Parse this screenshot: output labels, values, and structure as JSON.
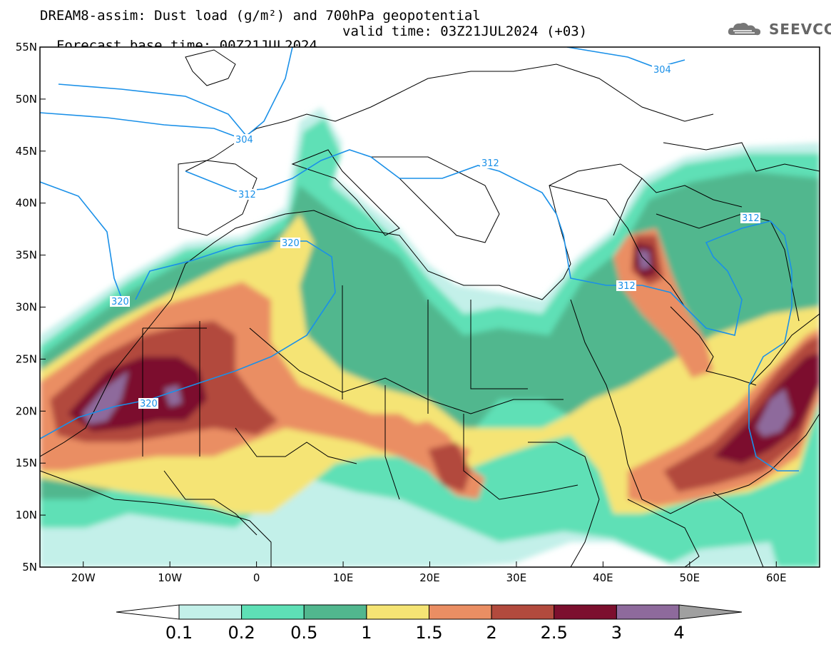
{
  "header": {
    "title_line1": "DREAM8-assim: Dust load (g/m²) and 700hPa geopotential",
    "base_time": "Forecast base time: 00Z21JUL2024",
    "valid_time": "valid time: 03Z21JUL2024 (+03)"
  },
  "logo": {
    "text": "SEEVCCC",
    "icon": "cloud-icon"
  },
  "map": {
    "lon_range": [
      -25,
      65
    ],
    "lat_range": [
      5,
      55
    ],
    "lat_ticks": [
      "55N",
      "50N",
      "45N",
      "40N",
      "35N",
      "30N",
      "25N",
      "20N",
      "15N",
      "10N",
      "5N"
    ],
    "lon_ticks": [
      "20W",
      "10W",
      "0",
      "10E",
      "20E",
      "30E",
      "40E",
      "50E",
      "60E"
    ],
    "contour_labels": [
      "304",
      "304",
      "312",
      "312",
      "312",
      "312",
      "320",
      "320",
      "320"
    ]
  },
  "colorbar": {
    "labels": [
      "0.1",
      "0.2",
      "0.5",
      "1",
      "1.5",
      "2",
      "2.5",
      "3",
      "4"
    ],
    "colors": [
      "#ffffff",
      "#c3f0e9",
      "#5ee0b6",
      "#51b78e",
      "#f5e474",
      "#ea8e63",
      "#b24a3d",
      "#7c0f2e",
      "#8e6a9c",
      "#a0a0a0"
    ]
  }
}
